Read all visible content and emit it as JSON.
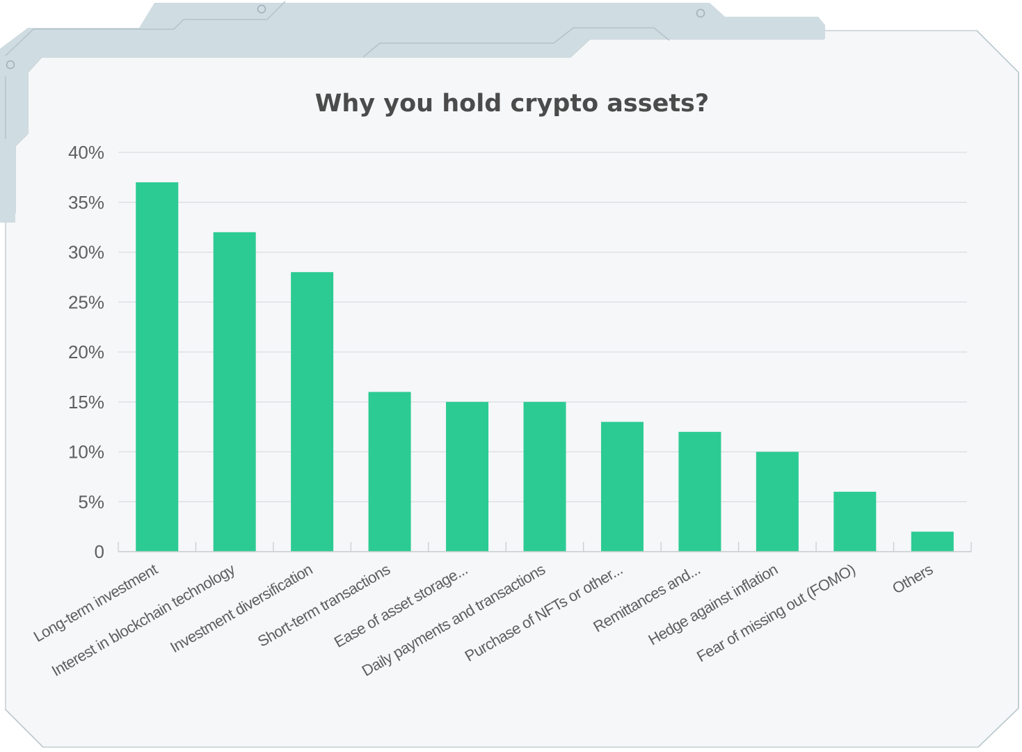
{
  "chart_data": {
    "type": "bar",
    "title": "Why you hold crypto assets?",
    "xlabel": "",
    "ylabel": "",
    "categories": [
      "Long-term investment",
      "Interest in blockchain technology",
      "Investment diversification",
      "Short-term transactions",
      "Ease of asset storage...",
      "Daily payments and transactions",
      "Purchase of NFTs or other...",
      "Remittances and...",
      "Hedge against inflation",
      "Fear of missing out (FOMO)",
      "Others"
    ],
    "values": [
      37,
      32,
      28,
      16,
      15,
      15,
      13,
      12,
      10,
      6,
      2
    ],
    "ylim": [
      0,
      40
    ],
    "yticks": [
      0,
      5,
      10,
      15,
      20,
      25,
      30,
      35,
      40
    ],
    "ytick_labels": [
      "0",
      "5%",
      "10%",
      "15%",
      "20%",
      "25%",
      "30%",
      "35%",
      "40%"
    ],
    "grid": true,
    "legend": "none",
    "colors": {
      "bar": "#2ccb93",
      "grid": "#d9dde0",
      "axis": "#c7cbce",
      "panel": "#f5f7f8",
      "frame_accent": "#cfdce1",
      "frame_line": "#b9c6cc"
    }
  }
}
